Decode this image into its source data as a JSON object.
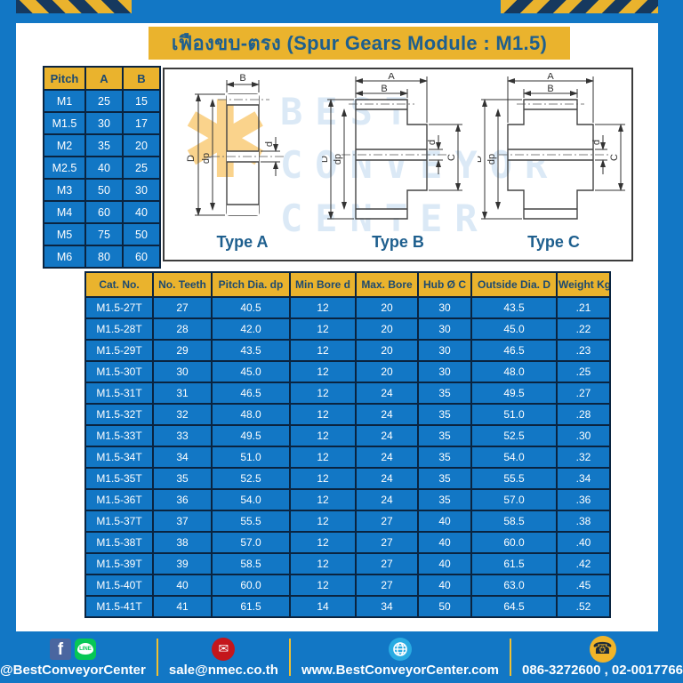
{
  "page": {
    "title": "เฟืองขบ-ตรง (Spur Gears Module : M1.5)"
  },
  "colors": {
    "frame_blue": "#1277c5",
    "cell_blue": "#1277c5",
    "accent_yellow": "#eab32d",
    "navy_text": "#1d4a70",
    "hazard_navy": "#16395f",
    "facebook_blue": "#4a66a0",
    "line_green": "#06c755",
    "envelope_red": "#c4161c",
    "globe_blue": "#29abe2"
  },
  "pitch_table": {
    "headers": [
      "Pitch",
      "A",
      "B"
    ],
    "rows": [
      [
        "M1",
        "25",
        "15"
      ],
      [
        "M1.5",
        "30",
        "17"
      ],
      [
        "M2",
        "35",
        "20"
      ],
      [
        "M2.5",
        "40",
        "25"
      ],
      [
        "M3",
        "50",
        "30"
      ],
      [
        "M4",
        "60",
        "40"
      ],
      [
        "M5",
        "75",
        "50"
      ],
      [
        "M6",
        "80",
        "60"
      ]
    ]
  },
  "diagrams": {
    "types": [
      {
        "label": "Type A"
      },
      {
        "label": "Type B"
      },
      {
        "label": "Type C"
      }
    ],
    "dims": {
      "A": "A",
      "B": "B",
      "C": "C",
      "D": "D",
      "d": "d",
      "dp": "dp"
    }
  },
  "watermark": {
    "logo": "✱",
    "lines": [
      "BEST",
      "CONVEYOR",
      "CENTER"
    ]
  },
  "main_table": {
    "headers": [
      "Cat. No.",
      "No. Teeth",
      "Pitch Dia. dp",
      "Min Bore d",
      "Max. Bore",
      "Hub Ø C",
      "Outside Dia. D",
      "Weight Kg"
    ],
    "rows": [
      [
        "M1.5-27T",
        "27",
        "40.5",
        "12",
        "20",
        "30",
        "43.5",
        ".21"
      ],
      [
        "M1.5-28T",
        "28",
        "42.0",
        "12",
        "20",
        "30",
        "45.0",
        ".22"
      ],
      [
        "M1.5-29T",
        "29",
        "43.5",
        "12",
        "20",
        "30",
        "46.5",
        ".23"
      ],
      [
        "M1.5-30T",
        "30",
        "45.0",
        "12",
        "20",
        "30",
        "48.0",
        ".25"
      ],
      [
        "M1.5-31T",
        "31",
        "46.5",
        "12",
        "24",
        "35",
        "49.5",
        ".27"
      ],
      [
        "M1.5-32T",
        "32",
        "48.0",
        "12",
        "24",
        "35",
        "51.0",
        ".28"
      ],
      [
        "M1.5-33T",
        "33",
        "49.5",
        "12",
        "24",
        "35",
        "52.5",
        ".30"
      ],
      [
        "M1.5-34T",
        "34",
        "51.0",
        "12",
        "24",
        "35",
        "54.0",
        ".32"
      ],
      [
        "M1.5-35T",
        "35",
        "52.5",
        "12",
        "24",
        "35",
        "55.5",
        ".34"
      ],
      [
        "M1.5-36T",
        "36",
        "54.0",
        "12",
        "24",
        "35",
        "57.0",
        ".36"
      ],
      [
        "M1.5-37T",
        "37",
        "55.5",
        "12",
        "27",
        "40",
        "58.5",
        ".38"
      ],
      [
        "M1.5-38T",
        "38",
        "57.0",
        "12",
        "27",
        "40",
        "60.0",
        ".40"
      ],
      [
        "M1.5-39T",
        "39",
        "58.5",
        "12",
        "27",
        "40",
        "61.5",
        ".42"
      ],
      [
        "M1.5-40T",
        "40",
        "60.0",
        "12",
        "27",
        "40",
        "63.0",
        ".45"
      ],
      [
        "M1.5-41T",
        "41",
        "61.5",
        "14",
        "34",
        "50",
        "64.5",
        ".52"
      ]
    ]
  },
  "footer": {
    "social": {
      "label": "@BestConveyorCenter",
      "line_text": "LINE",
      "fb_letter": "f"
    },
    "email": {
      "label": "sale@nmec.co.th",
      "glyph": "✉"
    },
    "website": {
      "label": "www.BestConveyorCenter.com"
    },
    "phone": {
      "label": "086-3272600 , 02-0017766",
      "glyph": "☎"
    }
  }
}
